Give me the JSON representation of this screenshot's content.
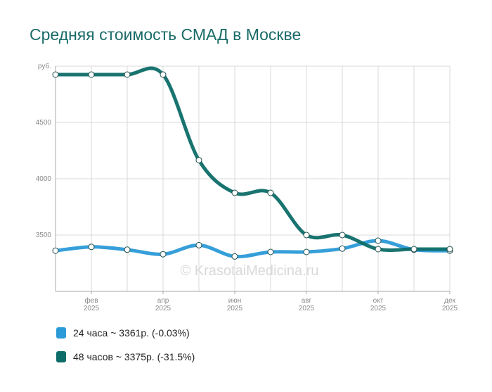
{
  "title": "Средняя стоимость СМАД в Москве",
  "watermark": "© KrasotaiMedicina.ru",
  "chart_data": {
    "type": "line",
    "title": "Средняя стоимость СМАД в Москве",
    "ylabel": "руб.",
    "ylim": [
      3000,
      5000
    ],
    "yticks": [
      {
        "value": 3500,
        "label": "3500"
      },
      {
        "value": 4000,
        "label": "4000"
      },
      {
        "value": 4500,
        "label": "4500"
      },
      {
        "value": 5000,
        "label": "руб."
      }
    ],
    "x": [
      1,
      2,
      3,
      4,
      5,
      6,
      7,
      8,
      9,
      10,
      11,
      12
    ],
    "xlim": [
      1,
      12
    ],
    "xticks": [
      {
        "value": 2,
        "month": "фев",
        "year": "2025"
      },
      {
        "value": 4,
        "month": "апр",
        "year": "2025"
      },
      {
        "value": 6,
        "month": "июн",
        "year": "2025"
      },
      {
        "value": 8,
        "month": "авг",
        "year": "2025"
      },
      {
        "value": 10,
        "month": "окт",
        "year": "2025"
      },
      {
        "value": 12,
        "month": "дек",
        "year": "2025"
      }
    ],
    "grid": true,
    "series": [
      {
        "name": "24 часа",
        "color": "#2b9ad8",
        "values": [
          3361,
          3395,
          3370,
          3330,
          3410,
          3310,
          3350,
          3350,
          3380,
          3450,
          3370,
          3361
        ],
        "legend": "24 часа ~ 3361р. (-0.03%)"
      },
      {
        "name": "48 часов",
        "color": "#0d6d68",
        "values": [
          4925,
          4925,
          4925,
          4925,
          4165,
          3875,
          3875,
          3500,
          3500,
          3375,
          3375,
          3375
        ],
        "legend": "48 часов ~ 3375р. (-31.5%)"
      }
    ]
  }
}
